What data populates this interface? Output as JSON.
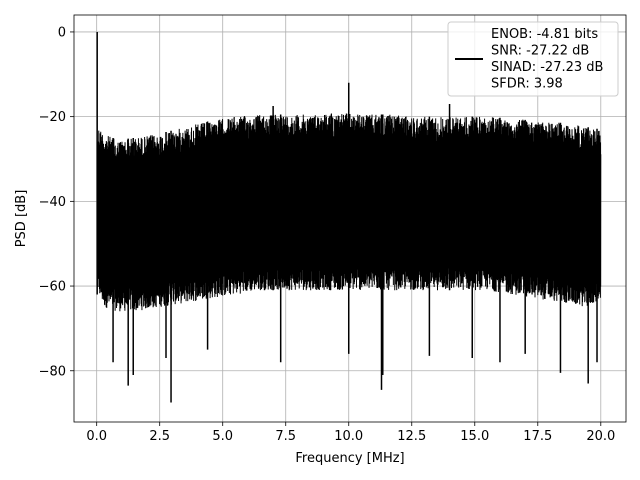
{
  "chart_data": {
    "type": "line",
    "xlabel": "Frequency [MHz]",
    "ylabel": "PSD [dB]",
    "xlim": [
      -0.9,
      21.0
    ],
    "ylim": [
      -92.1,
      4.0
    ],
    "xticks": [
      0.0,
      2.5,
      5.0,
      7.5,
      10.0,
      12.5,
      15.0,
      17.5,
      20.0
    ],
    "xtick_labels": [
      "0.0",
      "2.5",
      "5.0",
      "7.5",
      "10.0",
      "12.5",
      "15.0",
      "17.5",
      "20.0"
    ],
    "yticks": [
      0,
      -20,
      -40,
      -60,
      -80
    ],
    "ytick_labels": [
      "0",
      "−20",
      "−40",
      "−60",
      "−80"
    ],
    "grid": true,
    "legend_position": "top-right",
    "series": [
      {
        "color": "#000000",
        "description": "dense noise-floor PSD trace",
        "envelope_upper": {
          "x": [
            0.05,
            0.3,
            0.8,
            1.5,
            2.5,
            3.5,
            4.5,
            5.5,
            6.5,
            7.5,
            8.5,
            9.5,
            10.5,
            11.5,
            12.5,
            13.5,
            14.5,
            15.5,
            16.5,
            17.5,
            18.5,
            19.5,
            20.0
          ],
          "y": [
            -22,
            -24,
            -25.5,
            -25,
            -24,
            -22.5,
            -21,
            -20,
            -19.5,
            -19.5,
            -19.5,
            -19,
            -19.5,
            -19.5,
            -20,
            -20,
            -20,
            -20,
            -20.5,
            -21,
            -21.5,
            -22.5,
            -23
          ]
        },
        "envelope_lower": {
          "x": [
            0.05,
            0.3,
            0.8,
            1.5,
            2.5,
            3.5,
            4.5,
            5.5,
            6.5,
            7.5,
            8.5,
            9.5,
            10.5,
            11.5,
            12.5,
            13.5,
            14.5,
            15.5,
            16.5,
            17.5,
            18.5,
            19.5,
            20.0
          ],
          "y": [
            -62,
            -65,
            -66,
            -66,
            -65,
            -64,
            -63,
            -62,
            -61,
            -61,
            -61,
            -61,
            -61,
            -61,
            -61,
            -61,
            -61,
            -61,
            -62,
            -63,
            -64,
            -65,
            -63
          ]
        },
        "peaks": [
          {
            "x": 0.02,
            "y": 0.0
          },
          {
            "x": 10.0,
            "y": -12.0
          },
          {
            "x": 7.0,
            "y": -17.5
          },
          {
            "x": 14.0,
            "y": -17.0
          }
        ],
        "dips": [
          {
            "x": 0.65,
            "y": -78.0
          },
          {
            "x": 1.25,
            "y": -83.5
          },
          {
            "x": 1.45,
            "y": -81.0
          },
          {
            "x": 2.95,
            "y": -87.5
          },
          {
            "x": 2.75,
            "y": -77.0
          },
          {
            "x": 4.4,
            "y": -75.0
          },
          {
            "x": 7.3,
            "y": -78.0
          },
          {
            "x": 10.0,
            "y": -76.0
          },
          {
            "x": 11.3,
            "y": -84.5
          },
          {
            "x": 11.35,
            "y": -81.0
          },
          {
            "x": 13.2,
            "y": -76.5
          },
          {
            "x": 14.9,
            "y": -77.0
          },
          {
            "x": 16.0,
            "y": -78.0
          },
          {
            "x": 17.0,
            "y": -76.0
          },
          {
            "x": 18.4,
            "y": -80.5
          },
          {
            "x": 19.5,
            "y": -83.0
          },
          {
            "x": 19.85,
            "y": -78.0
          }
        ]
      }
    ],
    "legend": [
      {
        "line_color": "#000000",
        "lines": [
          "ENOB: -4.81 bits",
          "SNR: -27.22 dB",
          "SINAD: -27.23 dB",
          "SFDR: 3.98"
        ]
      }
    ]
  }
}
